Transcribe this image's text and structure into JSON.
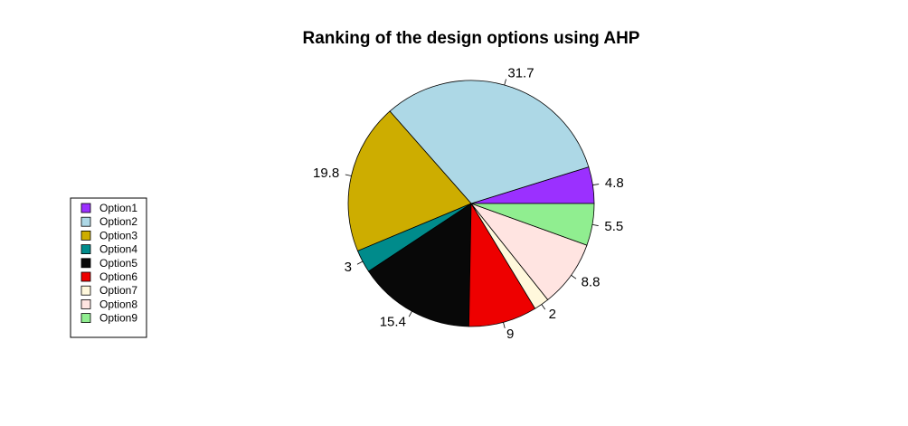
{
  "chart_data": {
    "type": "pie",
    "title": "Ranking of the design options using AHP",
    "categories": [
      "Option1",
      "Option2",
      "Option3",
      "Option4",
      "Option5",
      "Option6",
      "Option7",
      "Option8",
      "Option9"
    ],
    "values": [
      4.8,
      31.7,
      19.8,
      3,
      15.4,
      9,
      2,
      8.8,
      5.5
    ],
    "labels": [
      "4.8",
      "31.7",
      "19.8",
      "3",
      "15.4",
      "9",
      "2",
      "8.8",
      "5.5"
    ],
    "colors": [
      "#9B30FF",
      "#ADD8E6",
      "#CDAD00",
      "#008B8B",
      "#080808",
      "#EE0000",
      "#FFF8DC",
      "#FFE4E1",
      "#90EE90"
    ],
    "start_angle_deg": 0,
    "direction": "counterclockwise",
    "legend": {
      "position": "left",
      "entries": [
        "Option1",
        "Option2",
        "Option3",
        "Option4",
        "Option5",
        "Option6",
        "Option7",
        "Option8",
        "Option9"
      ]
    }
  }
}
